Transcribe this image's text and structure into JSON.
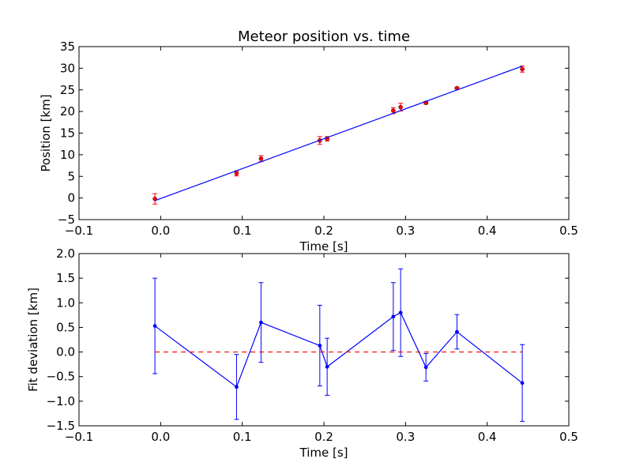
{
  "chart_data": [
    {
      "type": "line",
      "title": "Meteor position vs. time",
      "xlabel": "Time [s]",
      "ylabel": "Position [km]",
      "xlim": [
        -0.1,
        0.5
      ],
      "ylim": [
        -5,
        35
      ],
      "xticks": [
        "−0.1",
        "0.0",
        "0.1",
        "0.2",
        "0.3",
        "0.4",
        "0.5"
      ],
      "yticks": [
        "−5",
        "0",
        "5",
        "10",
        "15",
        "20",
        "25",
        "30",
        "35"
      ],
      "grid": false,
      "series": [
        {
          "kind": "scatter-errorbar",
          "color": "#ff0000",
          "x": [
            -0.007,
            0.093,
            0.123,
            0.195,
            0.204,
            0.285,
            0.294,
            0.325,
            0.363,
            0.443
          ],
          "y": [
            -0.2,
            5.7,
            9.1,
            13.3,
            13.7,
            20.2,
            21.0,
            22.0,
            25.4,
            29.8
          ],
          "yerr": [
            1.2,
            0.6,
            0.7,
            0.9,
            0.5,
            0.7,
            0.9,
            0.3,
            0.2,
            0.7
          ]
        },
        {
          "kind": "fit-line",
          "color": "#0000ff",
          "x": [
            -0.007,
            0.443
          ],
          "y": [
            -0.6,
            30.5
          ]
        }
      ]
    },
    {
      "type": "line",
      "title": "",
      "xlabel": "Time [s]",
      "ylabel": "Fit deviation [km]",
      "xlim": [
        -0.1,
        0.5
      ],
      "ylim": [
        -1.5,
        2.0
      ],
      "xticks": [
        "−0.1",
        "0.0",
        "0.1",
        "0.2",
        "0.3",
        "0.4",
        "0.5"
      ],
      "yticks": [
        "−1.5",
        "−1.0",
        "−0.5",
        "0.0",
        "0.5",
        "1.0",
        "1.5",
        "2.0"
      ],
      "grid": false,
      "series": [
        {
          "kind": "line-errorbar",
          "color": "#0000ff",
          "x": [
            -0.007,
            0.093,
            0.123,
            0.195,
            0.204,
            0.285,
            0.294,
            0.325,
            0.363,
            0.443
          ],
          "y": [
            0.53,
            -0.71,
            0.6,
            0.13,
            -0.3,
            0.72,
            0.8,
            -0.31,
            0.41,
            -0.63
          ],
          "yerr": [
            0.97,
            0.66,
            0.81,
            0.82,
            0.58,
            0.69,
            0.89,
            0.28,
            0.35,
            0.78
          ]
        },
        {
          "kind": "reference-line",
          "color": "#ff0000",
          "style": "dashed",
          "x": [
            -0.007,
            0.443
          ],
          "y": [
            0,
            0
          ]
        }
      ]
    }
  ]
}
